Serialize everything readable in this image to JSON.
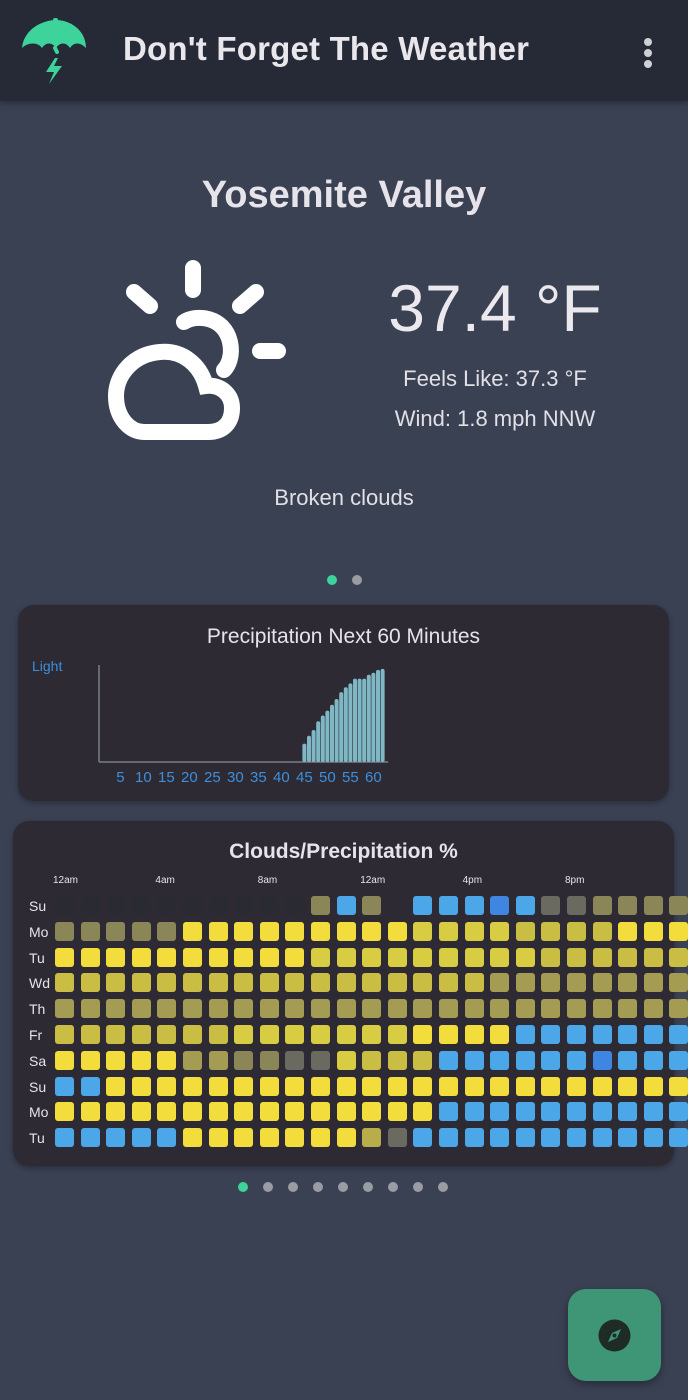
{
  "app": {
    "title": "Don't Forget The Weather",
    "logo_icon": "umbrella-lightning-icon",
    "menu_icon": "more-vert-icon",
    "accent": "#3dd39b"
  },
  "current": {
    "location": "Yosemite Valley",
    "icon": "partly-cloudy-icon",
    "temperature": "37.4 °F",
    "feels_like": "Feels Like: 37.3 °F",
    "wind": "Wind: 1.8 mph NNW",
    "condition": "Broken clouds"
  },
  "pager_top": {
    "count": 2,
    "active": 0
  },
  "precipitation": {
    "title": "Precipitation Next 60 Minutes",
    "y_label": "Light",
    "x_ticks": [
      "5",
      "10",
      "15",
      "20",
      "25",
      "30",
      "35",
      "40",
      "45",
      "50",
      "55",
      "60"
    ],
    "bar_color": "#7fb8c4",
    "values": [
      0,
      0,
      0,
      0,
      0,
      0,
      0,
      0,
      0,
      0,
      0,
      0,
      0,
      0,
      0,
      0,
      0,
      0,
      0,
      0,
      0,
      0,
      0,
      0,
      0,
      0,
      0,
      0,
      0,
      0,
      0,
      0,
      0,
      0,
      0,
      0,
      0,
      0,
      0,
      0,
      0,
      0,
      0,
      0,
      0.19,
      0.27,
      0.33,
      0.42,
      0.48,
      0.53,
      0.59,
      0.65,
      0.72,
      0.77,
      0.81,
      0.86,
      0.86,
      0.86,
      0.9,
      0.92,
      0.95,
      0.96
    ]
  },
  "clouds": {
    "title": "Clouds/Precipitation %",
    "hour_labels": [
      "12am",
      "4am",
      "8am",
      "12am",
      "4pm",
      "8pm"
    ],
    "days": [
      "Su",
      "Mo",
      "Tu",
      "Wd",
      "Th",
      "Fr",
      "Sa",
      "Su",
      "Mo",
      "Tu"
    ],
    "color_key": {
      "e": "#2a2a33",
      "g": "#6a6a60",
      "o": "#8a8658",
      "k": "#a39c52",
      "q": "#b8ad4a",
      "m": "#c9bd44",
      "s": "#d8cc42",
      "y": "#f2dd3c",
      "b": "#4ca7e8",
      "d": "#3f86e2"
    },
    "rows": [
      "eeeeeeeeeeoboubbbdbggooooo",
      "oooooyyyyyyyyyssssmmmmyyyy",
      "yyyyyyyyyysssssssssmmmmmmm",
      "mmmmmmmmmmmmmmmmmkkkkkkkkk",
      "kkkkkkkkkkkkkkkkkkkkkkkkkk",
      "mmmmmmmsssssssyyyybbbbbbby",
      "yyyyykkooggsmmmbbbbbbdbbbb",
      "bbyyyyyyyyyyyyyyyyyyyyyyyy",
      "yyyyyyyyyyyyyyybbbbbbbbbby",
      "bbbbbyyyyyyyqgbbbbbbbbbbbb"
    ]
  },
  "pager_bottom": {
    "count": 9,
    "active": 0
  },
  "fab": {
    "icon": "compass-icon",
    "color": "#3f9676"
  }
}
